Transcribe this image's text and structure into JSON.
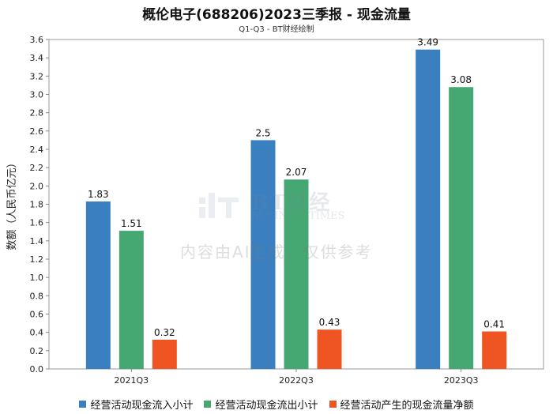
{
  "title": "概伦电子(688206)2023三季报 - 现金流量",
  "subtitle": "Q1-Q3 - BT财经绘制",
  "watermark": {
    "brand": "BT财经",
    "brand_en": "BUSINESSTIMES",
    "notice": "内容由AI生成，仅供参考"
  },
  "colors": {
    "series1": "#3a80c0",
    "series2": "#45a873",
    "series3": "#ef5523"
  },
  "chart_data": {
    "type": "bar",
    "title": "概伦电子(688206)2023三季报 - 现金流量",
    "xlabel": "",
    "ylabel": "数额（人民币亿元）",
    "ylim": [
      0,
      3.6
    ],
    "yticks": [
      "0.0",
      "0.2",
      "0.4",
      "0.6",
      "0.8",
      "1.0",
      "1.2",
      "1.4",
      "1.6",
      "1.8",
      "2.0",
      "2.2",
      "2.4",
      "2.6",
      "2.8",
      "3.0",
      "3.2",
      "3.4",
      "3.6"
    ],
    "categories": [
      "2021Q3",
      "2022Q3",
      "2023Q3"
    ],
    "series": [
      {
        "name": "经营活动现金流入小计",
        "values": [
          1.83,
          2.5,
          3.49
        ],
        "labels": [
          "1.83",
          "2.5",
          "3.49"
        ]
      },
      {
        "name": "经营活动现金流出小计",
        "values": [
          1.51,
          2.07,
          3.08
        ],
        "labels": [
          "1.51",
          "2.07",
          "3.08"
        ]
      },
      {
        "name": "经营活动产生的现金流量净额",
        "values": [
          0.32,
          0.43,
          0.41
        ],
        "labels": [
          "0.32",
          "0.43",
          "0.41"
        ]
      }
    ],
    "grid": false,
    "legend": "bottom"
  }
}
